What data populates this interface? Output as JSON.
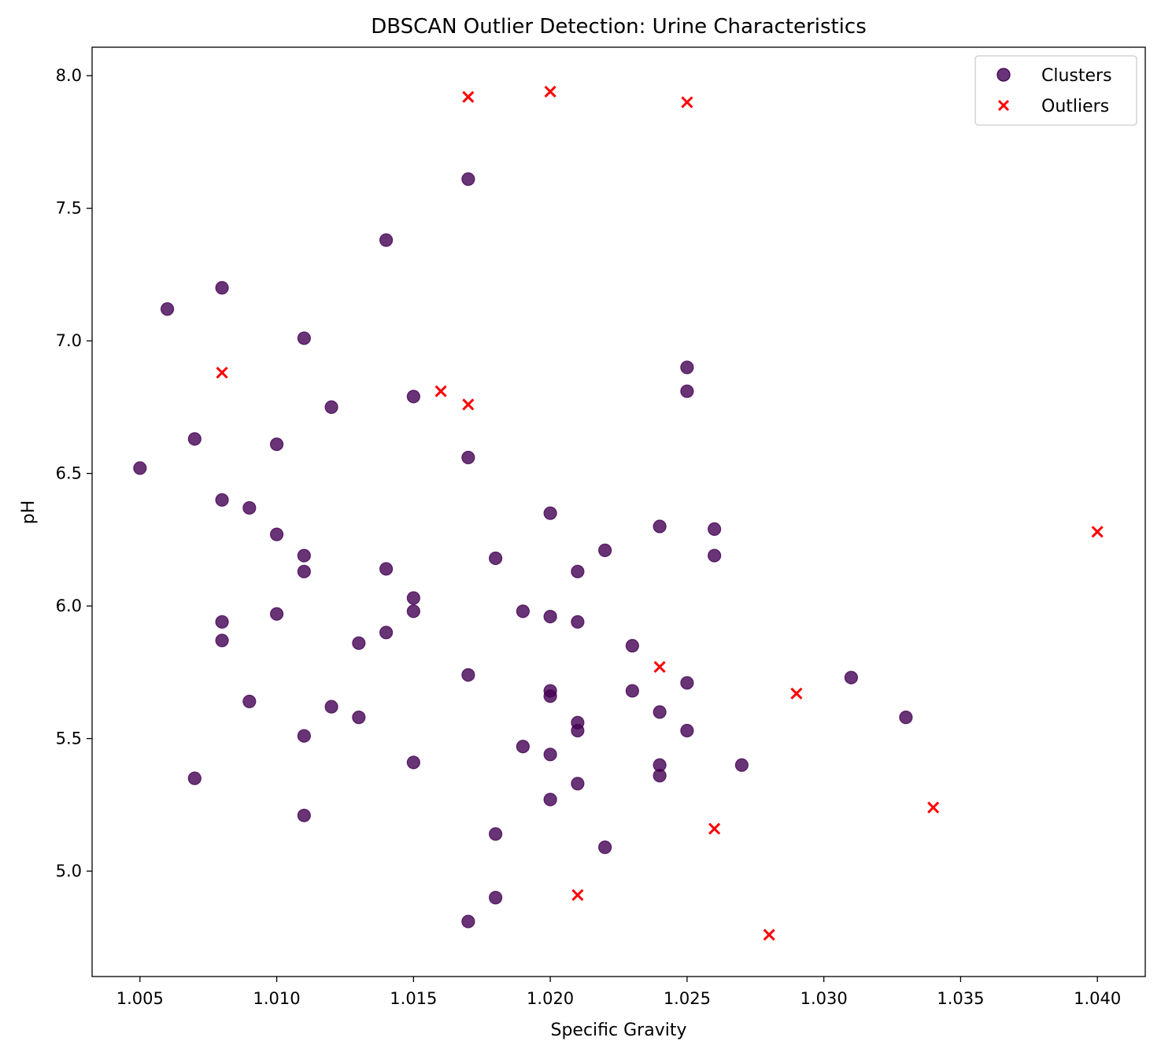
{
  "chart_data": {
    "type": "scatter",
    "title": "DBSCAN Outlier Detection: Urine Characteristics",
    "xlabel": "Specific Gravity",
    "ylabel": "pH",
    "xlim": [
      1.00325,
      1.04175
    ],
    "ylim": [
      4.6025,
      8.1075
    ],
    "xticks": [
      1.005,
      1.01,
      1.015,
      1.02,
      1.025,
      1.03,
      1.035,
      1.04
    ],
    "xtick_labels": [
      "1.005",
      "1.010",
      "1.015",
      "1.020",
      "1.025",
      "1.030",
      "1.035",
      "1.040"
    ],
    "yticks": [
      5.0,
      5.5,
      6.0,
      6.5,
      7.0,
      7.5,
      8.0
    ],
    "ytick_labels": [
      "5.0",
      "5.5",
      "6.0",
      "6.5",
      "7.0",
      "7.5",
      "8.0"
    ],
    "grid": false,
    "legend_position": "top-right",
    "series": [
      {
        "name": "Clusters",
        "marker": "circle",
        "color": "#440154",
        "alpha": 0.8,
        "points": [
          [
            1.005,
            6.52
          ],
          [
            1.006,
            7.12
          ],
          [
            1.007,
            6.63
          ],
          [
            1.007,
            5.35
          ],
          [
            1.008,
            7.2
          ],
          [
            1.008,
            6.4
          ],
          [
            1.008,
            5.94
          ],
          [
            1.008,
            5.87
          ],
          [
            1.009,
            6.37
          ],
          [
            1.009,
            5.64
          ],
          [
            1.01,
            6.61
          ],
          [
            1.01,
            6.27
          ],
          [
            1.01,
            5.97
          ],
          [
            1.011,
            7.01
          ],
          [
            1.011,
            6.19
          ],
          [
            1.011,
            6.13
          ],
          [
            1.011,
            5.51
          ],
          [
            1.011,
            5.21
          ],
          [
            1.012,
            6.75
          ],
          [
            1.012,
            5.62
          ],
          [
            1.013,
            5.86
          ],
          [
            1.013,
            5.58
          ],
          [
            1.014,
            7.38
          ],
          [
            1.014,
            6.14
          ],
          [
            1.014,
            5.9
          ],
          [
            1.015,
            6.79
          ],
          [
            1.015,
            6.03
          ],
          [
            1.015,
            5.98
          ],
          [
            1.015,
            5.41
          ],
          [
            1.017,
            7.61
          ],
          [
            1.017,
            6.56
          ],
          [
            1.017,
            5.74
          ],
          [
            1.017,
            4.81
          ],
          [
            1.018,
            6.18
          ],
          [
            1.018,
            5.14
          ],
          [
            1.018,
            4.9
          ],
          [
            1.019,
            5.98
          ],
          [
            1.019,
            5.47
          ],
          [
            1.02,
            6.35
          ],
          [
            1.02,
            5.96
          ],
          [
            1.02,
            5.68
          ],
          [
            1.02,
            5.66
          ],
          [
            1.02,
            5.44
          ],
          [
            1.02,
            5.27
          ],
          [
            1.021,
            6.13
          ],
          [
            1.021,
            5.94
          ],
          [
            1.021,
            5.56
          ],
          [
            1.021,
            5.53
          ],
          [
            1.021,
            5.33
          ],
          [
            1.022,
            6.21
          ],
          [
            1.022,
            5.09
          ],
          [
            1.023,
            5.85
          ],
          [
            1.023,
            5.68
          ],
          [
            1.024,
            6.3
          ],
          [
            1.024,
            5.6
          ],
          [
            1.024,
            5.4
          ],
          [
            1.024,
            5.36
          ],
          [
            1.025,
            6.9
          ],
          [
            1.025,
            6.81
          ],
          [
            1.025,
            5.71
          ],
          [
            1.025,
            5.53
          ],
          [
            1.026,
            6.29
          ],
          [
            1.026,
            6.19
          ],
          [
            1.027,
            5.4
          ],
          [
            1.031,
            5.73
          ],
          [
            1.033,
            5.58
          ]
        ]
      },
      {
        "name": "Outliers",
        "marker": "x",
        "color": "#ff0000",
        "points": [
          [
            1.017,
            7.92
          ],
          [
            1.02,
            7.94
          ],
          [
            1.025,
            7.9
          ],
          [
            1.008,
            6.88
          ],
          [
            1.016,
            6.81
          ],
          [
            1.017,
            6.76
          ],
          [
            1.04,
            6.28
          ],
          [
            1.024,
            5.77
          ],
          [
            1.029,
            5.67
          ],
          [
            1.034,
            5.24
          ],
          [
            1.026,
            5.16
          ],
          [
            1.021,
            4.91
          ],
          [
            1.028,
            4.76
          ]
        ]
      }
    ]
  }
}
